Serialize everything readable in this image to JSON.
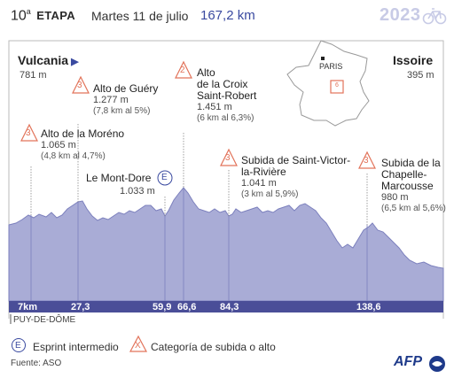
{
  "header": {
    "stage_number": "10",
    "stage_sup": "a",
    "stage_label": "ETAPA",
    "date": "Martes 11 de julio",
    "distance": "167,2 km",
    "year": "2023"
  },
  "start": {
    "city": "Vulcania",
    "altitude": "781 m"
  },
  "finish": {
    "city": "Issoire",
    "altitude": "395 m"
  },
  "map": {
    "paris_label": "PARIS",
    "marker_label": "6"
  },
  "climbs": [
    {
      "category": "3",
      "name": "Alto de Guéry",
      "altitude": "1.277 m",
      "info": "(7,8 km al 5%)"
    },
    {
      "category": "2",
      "name1": "Alto",
      "name2": "de la Croix",
      "name3": "Saint-Robert",
      "altitude": "1.451 m",
      "info": "(6 km al 6,3%)"
    },
    {
      "category": "3",
      "name": "Alto de la Moréno",
      "altitude": "1.065 m",
      "info": "(4,8 km al 4,7%)"
    },
    {
      "category": "3",
      "name1": "Subida de Saint-Victor-",
      "name2": "la-Rivière",
      "altitude": "1.041 m",
      "info": "(3 km al 5,9%)"
    },
    {
      "category": "3",
      "name1": "Subida de la",
      "name2": "Chapelle-",
      "name3": "Marcousse",
      "altitude": "980 m",
      "info": "(6,5 km al 5,6%)"
    }
  ],
  "sprint": {
    "name": "Le Mont-Dore",
    "letter": "E",
    "altitude": "1.033 m"
  },
  "km_marks": [
    "7km",
    "27,3",
    "59,9",
    "66,6",
    "84,3",
    "138,6"
  ],
  "region": "PUY-DE-DÔME",
  "legend": {
    "sprint_symbol": "E",
    "sprint_label": "Esprint intermedio",
    "climb_symbol": "X",
    "climb_label": "Categoría de subida o alto"
  },
  "source": "Fuente: ASO",
  "agency": "AFP",
  "colors": {
    "profile_fill": "#a9acd6",
    "profile_line": "#7c80bd",
    "km_bar": "#4a4e98",
    "climb_triangle": "#e2735a",
    "title_blue": "#3a4aa0"
  },
  "chart_data": {
    "type": "area",
    "x": [
      0,
      7,
      15,
      20,
      27.3,
      35,
      45,
      52,
      59.9,
      66.6,
      75,
      84.3,
      95,
      105,
      115,
      125,
      130,
      138.6,
      150,
      160,
      167.2
    ],
    "y": [
      781,
      781,
      900,
      1065,
      1277,
      1050,
      1033,
      1100,
      1033,
      1451,
      1050,
      1041,
      1100,
      1180,
      1000,
      800,
      750,
      980,
      700,
      500,
      395
    ],
    "ylabel": "",
    "xlabel": "",
    "ylim": [
      300,
      2500
    ]
  }
}
